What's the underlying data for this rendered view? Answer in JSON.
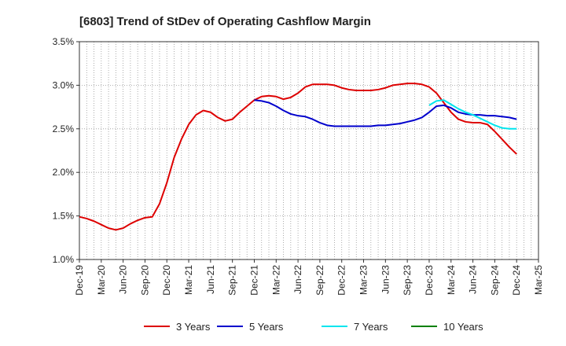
{
  "chart_data": {
    "type": "line",
    "title": "[6803]  Trend of StDev of Operating Cashflow Margin",
    "xlabel": "",
    "ylabel": "",
    "x_tick_labels": [
      "Dec-19",
      "Mar-20",
      "Jun-20",
      "Sep-20",
      "Dec-20",
      "Mar-21",
      "Jun-21",
      "Sep-21",
      "Dec-21",
      "Mar-22",
      "Jun-22",
      "Sep-22",
      "Dec-22",
      "Mar-23",
      "Jun-23",
      "Sep-23",
      "Dec-23",
      "Mar-24",
      "Jun-24",
      "Sep-24",
      "Dec-24",
      "Mar-25"
    ],
    "y_tick_labels": [
      "3.5%",
      "3.0%",
      "2.5%",
      "2.0%",
      "1.5%",
      "1.0%"
    ],
    "ylim": [
      1.0,
      3.5
    ],
    "y_ticks": [
      3.5,
      3.0,
      2.5,
      2.0,
      1.5,
      1.0
    ],
    "grid": true,
    "legend_position": "bottom",
    "series": [
      {
        "name": "3 Years",
        "color": "#dd0000",
        "points": [
          [
            "Dec-19",
            1.49
          ],
          [
            "Jan-20",
            1.47
          ],
          [
            "Feb-20",
            1.44
          ],
          [
            "Mar-20",
            1.4
          ],
          [
            "Apr-20",
            1.36
          ],
          [
            "May-20",
            1.34
          ],
          [
            "Jun-20",
            1.36
          ],
          [
            "Jul-20",
            1.41
          ],
          [
            "Aug-20",
            1.45
          ],
          [
            "Sep-20",
            1.48
          ],
          [
            "Oct-20",
            1.49
          ],
          [
            "Nov-20",
            1.64
          ],
          [
            "Dec-20",
            1.88
          ],
          [
            "Jan-21",
            2.17
          ],
          [
            "Feb-21",
            2.38
          ],
          [
            "Mar-21",
            2.55
          ],
          [
            "Apr-21",
            2.66
          ],
          [
            "May-21",
            2.71
          ],
          [
            "Jun-21",
            2.69
          ],
          [
            "Jul-21",
            2.63
          ],
          [
            "Aug-21",
            2.59
          ],
          [
            "Sep-21",
            2.61
          ],
          [
            "Oct-21",
            2.69
          ],
          [
            "Nov-21",
            2.76
          ],
          [
            "Dec-21",
            2.83
          ],
          [
            "Jan-22",
            2.87
          ],
          [
            "Feb-22",
            2.88
          ],
          [
            "Mar-22",
            2.87
          ],
          [
            "Apr-22",
            2.84
          ],
          [
            "May-22",
            2.86
          ],
          [
            "Jun-22",
            2.91
          ],
          [
            "Jul-22",
            2.98
          ],
          [
            "Aug-22",
            3.01
          ],
          [
            "Sep-22",
            3.01
          ],
          [
            "Oct-22",
            3.01
          ],
          [
            "Nov-22",
            3.0
          ],
          [
            "Dec-22",
            2.97
          ],
          [
            "Jan-23",
            2.95
          ],
          [
            "Feb-23",
            2.94
          ],
          [
            "Mar-23",
            2.94
          ],
          [
            "Apr-23",
            2.94
          ],
          [
            "May-23",
            2.95
          ],
          [
            "Jun-23",
            2.97
          ],
          [
            "Jul-23",
            3.0
          ],
          [
            "Aug-23",
            3.01
          ],
          [
            "Sep-23",
            3.02
          ],
          [
            "Oct-23",
            3.02
          ],
          [
            "Nov-23",
            3.01
          ],
          [
            "Dec-23",
            2.98
          ],
          [
            "Jan-24",
            2.91
          ],
          [
            "Feb-24",
            2.8
          ],
          [
            "Mar-24",
            2.69
          ],
          [
            "Apr-24",
            2.61
          ],
          [
            "May-24",
            2.58
          ],
          [
            "Jun-24",
            2.57
          ],
          [
            "Jul-24",
            2.57
          ],
          [
            "Aug-24",
            2.55
          ],
          [
            "Sep-24",
            2.47
          ],
          [
            "Oct-24",
            2.38
          ],
          [
            "Nov-24",
            2.29
          ],
          [
            "Dec-24",
            2.21
          ]
        ]
      },
      {
        "name": "5 Years",
        "color": "#0000cc",
        "points": [
          [
            "Dec-21",
            2.83
          ],
          [
            "Jan-22",
            2.82
          ],
          [
            "Feb-22",
            2.8
          ],
          [
            "Mar-22",
            2.76
          ],
          [
            "Apr-22",
            2.71
          ],
          [
            "May-22",
            2.67
          ],
          [
            "Jun-22",
            2.65
          ],
          [
            "Jul-22",
            2.64
          ],
          [
            "Aug-22",
            2.61
          ],
          [
            "Sep-22",
            2.57
          ],
          [
            "Oct-22",
            2.54
          ],
          [
            "Nov-22",
            2.53
          ],
          [
            "Dec-22",
            2.53
          ],
          [
            "Jan-23",
            2.53
          ],
          [
            "Feb-23",
            2.53
          ],
          [
            "Mar-23",
            2.53
          ],
          [
            "Apr-23",
            2.53
          ],
          [
            "May-23",
            2.54
          ],
          [
            "Jun-23",
            2.54
          ],
          [
            "Jul-23",
            2.55
          ],
          [
            "Aug-23",
            2.56
          ],
          [
            "Sep-23",
            2.58
          ],
          [
            "Oct-23",
            2.6
          ],
          [
            "Nov-23",
            2.63
          ],
          [
            "Dec-23",
            2.69
          ],
          [
            "Jan-24",
            2.76
          ],
          [
            "Feb-24",
            2.77
          ],
          [
            "Mar-24",
            2.74
          ],
          [
            "Apr-24",
            2.69
          ],
          [
            "May-24",
            2.67
          ],
          [
            "Jun-24",
            2.66
          ],
          [
            "Jul-24",
            2.66
          ],
          [
            "Aug-24",
            2.65
          ],
          [
            "Sep-24",
            2.65
          ],
          [
            "Oct-24",
            2.64
          ],
          [
            "Nov-24",
            2.63
          ],
          [
            "Dec-24",
            2.61
          ]
        ]
      },
      {
        "name": "7 Years",
        "color": "#00e5ee",
        "points": [
          [
            "Dec-23",
            2.77
          ],
          [
            "Jan-24",
            2.82
          ],
          [
            "Feb-24",
            2.83
          ],
          [
            "Mar-24",
            2.78
          ],
          [
            "Apr-24",
            2.73
          ],
          [
            "May-24",
            2.69
          ],
          [
            "Jun-24",
            2.66
          ],
          [
            "Jul-24",
            2.62
          ],
          [
            "Aug-24",
            2.58
          ],
          [
            "Sep-24",
            2.54
          ],
          [
            "Oct-24",
            2.51
          ],
          [
            "Nov-24",
            2.5
          ],
          [
            "Dec-24",
            2.5
          ]
        ]
      },
      {
        "name": "10 Years",
        "color": "#008000",
        "points": []
      }
    ]
  }
}
